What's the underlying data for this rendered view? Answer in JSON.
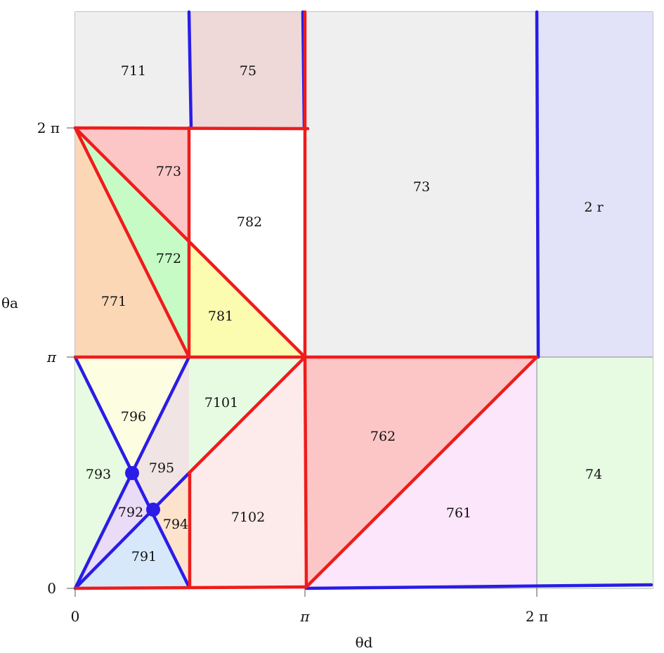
{
  "axes": {
    "x_label": "θd",
    "y_label": "θa",
    "x_ticks": [
      "0",
      "π",
      "2 π"
    ],
    "y_ticks": [
      "0",
      "π",
      "2 π"
    ]
  },
  "colors": {
    "red_line": "#ee1c1c",
    "blue_line": "#2a1ce6",
    "frame": "#8a8a8a"
  },
  "region_labels": [
    {
      "id": "r711",
      "text": "711"
    },
    {
      "id": "r75",
      "text": "75"
    },
    {
      "id": "r73",
      "text": "73"
    },
    {
      "id": "r2r",
      "text": "2 r"
    },
    {
      "id": "r773",
      "text": "773"
    },
    {
      "id": "r782",
      "text": "782"
    },
    {
      "id": "r772",
      "text": "772"
    },
    {
      "id": "r771",
      "text": "771"
    },
    {
      "id": "r781",
      "text": "781"
    },
    {
      "id": "r796",
      "text": "796"
    },
    {
      "id": "r7101",
      "text": "7101"
    },
    {
      "id": "r762",
      "text": "762"
    },
    {
      "id": "r793",
      "text": "793"
    },
    {
      "id": "r795",
      "text": "795"
    },
    {
      "id": "r74",
      "text": "74"
    },
    {
      "id": "r792",
      "text": "792"
    },
    {
      "id": "r794",
      "text": "794"
    },
    {
      "id": "r7102",
      "text": "7102"
    },
    {
      "id": "r761",
      "text": "761"
    },
    {
      "id": "r791",
      "text": "791"
    }
  ]
}
